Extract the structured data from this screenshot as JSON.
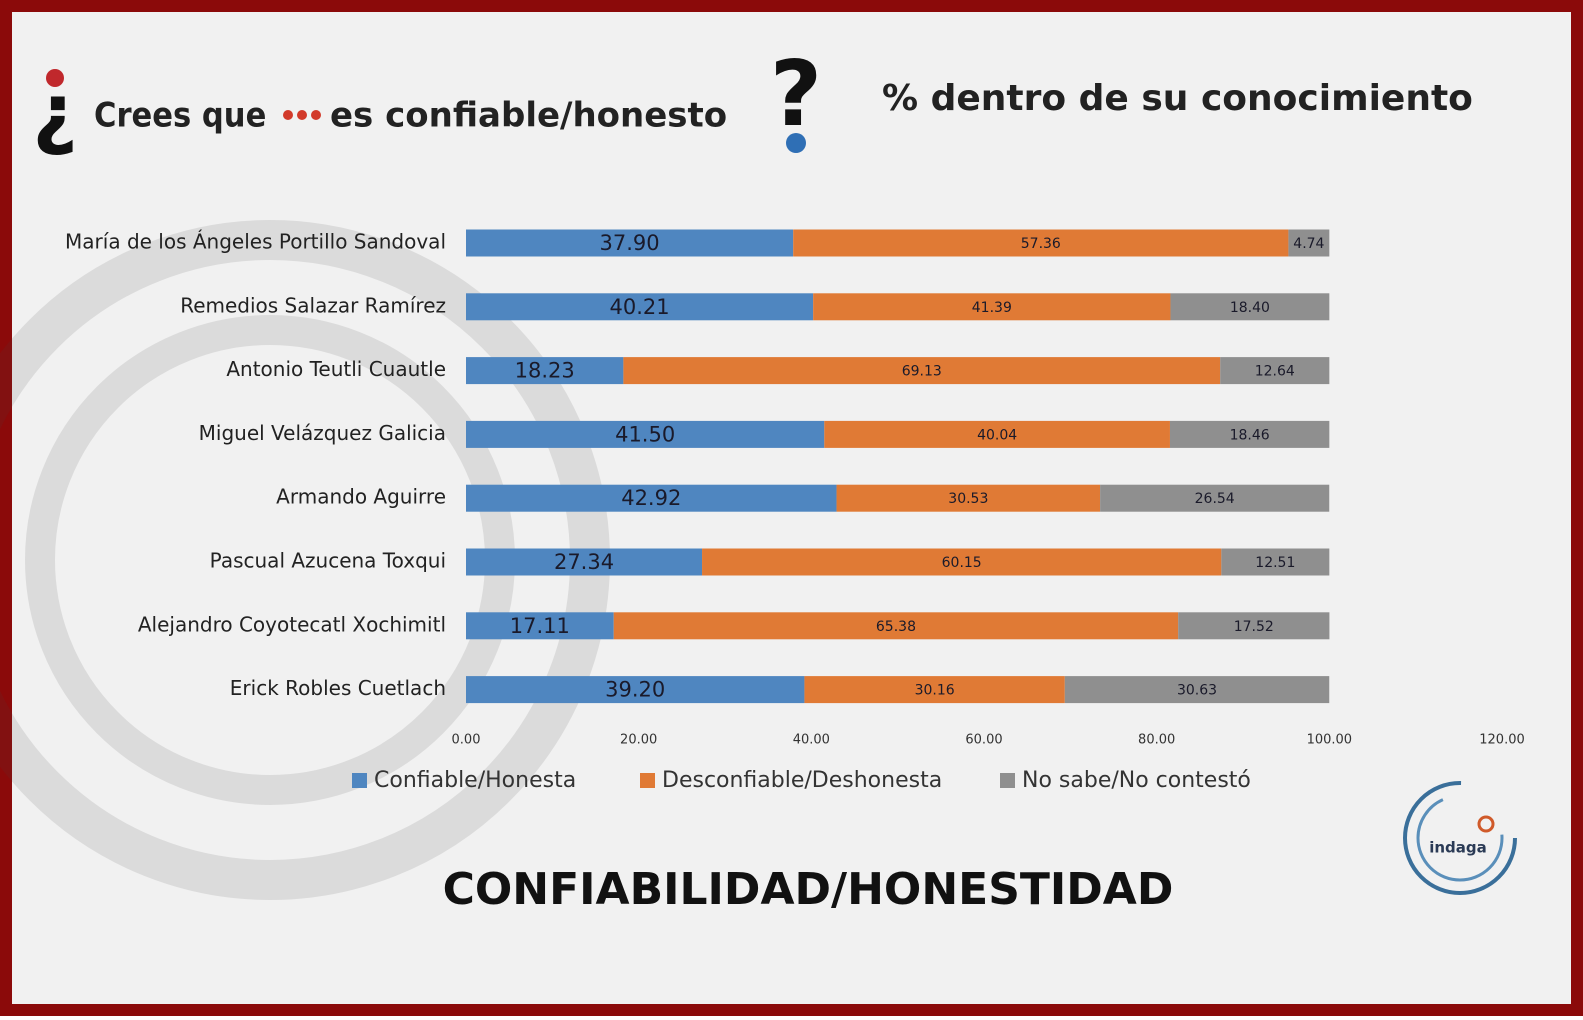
{
  "header": {
    "question_open": "¿",
    "left_text_1": "Crees que",
    "left_text_2": "es confiable/honesto",
    "question_close": "?",
    "right_text": "% dentro de su conocimiento"
  },
  "chart_data": {
    "type": "stacked-bar",
    "orientation": "horizontal",
    "title": "CONFIABILIDAD/HONESTIDAD",
    "categories": [
      "María de los Ángeles Portillo Sandoval",
      "Remedios Salazar Ramírez",
      "Antonio Teutli Cuautle",
      "Miguel Velázquez Galicia",
      "Armando Aguirre",
      "Pascual Azucena Toxqui",
      "Alejandro Coyotecatl Xochimitl",
      "Erick Robles Cuetlach"
    ],
    "series": [
      {
        "name": "Confiable/Honesta",
        "color": "#4f86c0",
        "values": [
          37.9,
          40.21,
          18.23,
          41.5,
          42.92,
          27.34,
          17.11,
          39.2
        ],
        "value_labels": [
          "37.90",
          "40.21",
          "18.23",
          "41.50",
          "42.92",
          "27.34",
          "17.11",
          "39.20"
        ]
      },
      {
        "name": "Desconfiable/Deshonesta",
        "color": "#e07a35",
        "values": [
          57.36,
          41.39,
          69.13,
          40.04,
          30.53,
          60.15,
          65.38,
          30.16
        ],
        "value_labels": [
          "57.36",
          "41.39",
          "69.13",
          "40.04",
          "30.53",
          "60.15",
          "65.38",
          "30.16"
        ]
      },
      {
        "name": "No sabe/No contestó",
        "color": "#8f8f8f",
        "values": [
          4.74,
          18.4,
          12.64,
          18.46,
          26.54,
          12.51,
          17.52,
          30.63
        ],
        "value_labels": [
          "4.74",
          "18.40",
          "12.64",
          "18.46",
          "26.54",
          "12.51",
          "17.52",
          "30.63"
        ]
      }
    ],
    "xlim": [
      0,
      120
    ],
    "xticks": [
      {
        "value": 0,
        "label": "0.00"
      },
      {
        "value": 20,
        "label": "20.00"
      },
      {
        "value": 40,
        "label": "40.00"
      },
      {
        "value": 60,
        "label": "60.00"
      },
      {
        "value": 80,
        "label": "80.00"
      },
      {
        "value": 100,
        "label": "100.00"
      },
      {
        "value": 120,
        "label": "120.00"
      }
    ],
    "legend": "bottom"
  },
  "logo": {
    "text": "indaga"
  }
}
